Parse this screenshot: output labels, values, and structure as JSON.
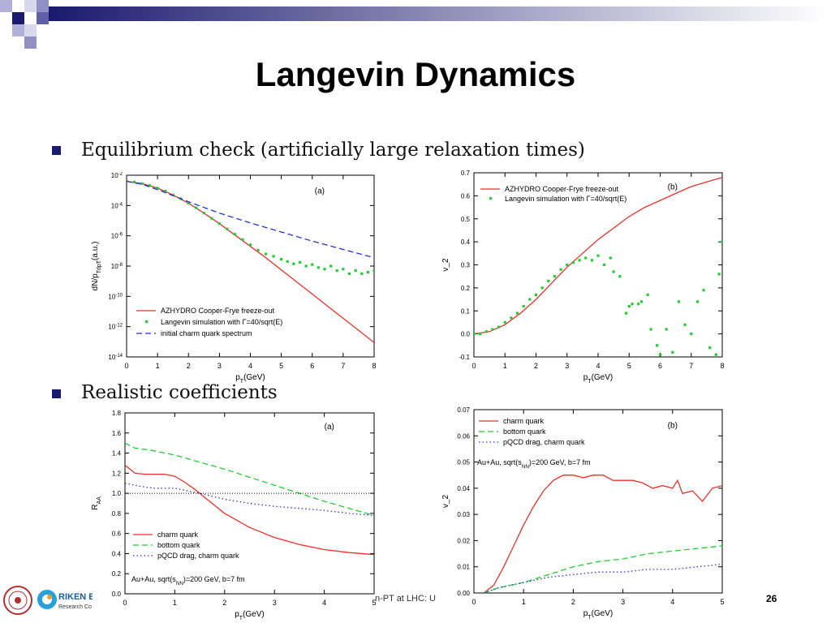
{
  "slide": {
    "title": "Langevin Dynamics",
    "bullet1": "Equilibrium check (artificially large relaxation times)",
    "bullet2": "Realistic coefficients",
    "footer": "n-PT at LHC: U",
    "page": "26",
    "logo_text": "RIKEN B",
    "logo_sub": "Research Co"
  },
  "colors": {
    "accent": "#1a1a6e",
    "red": "#e8312a",
    "blue": "#2633c8",
    "green": "#22cc33",
    "bluedot": "#3333cc"
  },
  "chart_data": [
    {
      "type": "line",
      "panel": "(a)",
      "xlabel": "p_T(GeV)",
      "ylabel": "dN/p_Tdp_T(a.u.)",
      "xlim": [
        0,
        8
      ],
      "ylim_log10": [
        -14,
        -2
      ],
      "log_y": true,
      "xticks": [
        "0",
        "1",
        "2",
        "3",
        "4",
        "5",
        "6",
        "7",
        "8"
      ],
      "yticks": [
        {
          "exp": "-2"
        },
        {
          "exp": "-4"
        },
        {
          "exp": "-6"
        },
        {
          "exp": "-8"
        },
        {
          "exp": "-10"
        },
        {
          "exp": "-12"
        },
        {
          "exp": "-14"
        }
      ],
      "legend": [
        "AZHYDRO Cooper-Frye freeze-out",
        "Langevin simulation with Γ=40/sqrt(E)",
        "initial charm quark spectrum"
      ],
      "series": [
        {
          "name": "AZHYDRO Cooper-Frye freeze-out",
          "style": "solid",
          "color": "#e8312a",
          "x": [
            0,
            0.5,
            1,
            1.5,
            2,
            2.5,
            3,
            3.5,
            4,
            4.5,
            5,
            5.5,
            6,
            6.5,
            7,
            7.5,
            8
          ],
          "y": [
            -2.4,
            -2.55,
            -2.85,
            -3.3,
            -3.85,
            -4.5,
            -5.2,
            -5.95,
            -6.7,
            -7.45,
            -8.25,
            -9.05,
            -9.85,
            -10.65,
            -11.45,
            -12.25,
            -13.05
          ]
        },
        {
          "name": "Langevin simulation with Γ=40/sqrt(E)",
          "style": "dots",
          "color": "#22cc33",
          "x": [
            0,
            0.25,
            0.5,
            0.75,
            1,
            1.25,
            1.5,
            1.75,
            2,
            2.25,
            2.5,
            2.75,
            3,
            3.25,
            3.5,
            3.75,
            4,
            4.25,
            4.5,
            4.75,
            5,
            5.2,
            5.4,
            5.6,
            5.8,
            6,
            6.2,
            6.4,
            6.6,
            6.8,
            7,
            7.2,
            7.4,
            7.6,
            7.8,
            8
          ],
          "y": [
            -2.4,
            -2.45,
            -2.55,
            -2.68,
            -2.85,
            -3.05,
            -3.3,
            -3.55,
            -3.85,
            -4.15,
            -4.5,
            -4.85,
            -5.2,
            -5.55,
            -5.9,
            -6.25,
            -6.6,
            -6.95,
            -7.2,
            -7.35,
            -7.55,
            -7.7,
            -7.85,
            -7.75,
            -8.0,
            -7.9,
            -8.1,
            -8.2,
            -8.0,
            -8.3,
            -8.2,
            -8.5,
            -8.3,
            -8.5,
            -8.4,
            -8.3
          ]
        },
        {
          "name": "initial charm quark spectrum",
          "style": "dashed",
          "color": "#2633c8",
          "x": [
            0,
            0.5,
            1,
            1.5,
            2,
            3,
            4,
            5,
            6,
            7,
            8
          ],
          "y": [
            -2.4,
            -2.6,
            -2.95,
            -3.35,
            -3.75,
            -4.5,
            -5.15,
            -5.75,
            -6.35,
            -6.9,
            -7.45
          ]
        }
      ]
    },
    {
      "type": "line",
      "panel": "(b)",
      "xlabel": "p_T(GeV)",
      "ylabel": "v_2",
      "xlim": [
        0,
        8
      ],
      "ylim": [
        -0.1,
        0.7
      ],
      "xticks": [
        "0",
        "1",
        "2",
        "3",
        "4",
        "5",
        "6",
        "7",
        "8"
      ],
      "yticks": [
        "0.7",
        "0.6",
        "0.5",
        "0.4",
        "0.3",
        "0.2",
        "0.1",
        "0.0",
        "-0.1"
      ],
      "legend": [
        "AZHYDRO Cooper-Frye freeze-out",
        "Langevin simulation with Γ=40/sqrt(E)"
      ],
      "series": [
        {
          "name": "AZHYDRO Cooper-Frye freeze-out",
          "style": "solid",
          "color": "#e8312a",
          "x": [
            0,
            0.5,
            1,
            1.5,
            2,
            2.5,
            3,
            3.5,
            4,
            4.5,
            5,
            5.5,
            6,
            6.5,
            7,
            7.5,
            8
          ],
          "y": [
            0,
            0.01,
            0.04,
            0.09,
            0.15,
            0.22,
            0.29,
            0.35,
            0.41,
            0.46,
            0.51,
            0.55,
            0.58,
            0.61,
            0.64,
            0.66,
            0.68
          ]
        },
        {
          "name": "Langevin simulation with Γ=40/sqrt(E)",
          "style": "dots",
          "color": "#22cc33",
          "x": [
            0,
            0.2,
            0.4,
            0.6,
            0.8,
            1,
            1.2,
            1.4,
            1.6,
            1.8,
            2,
            2.2,
            2.4,
            2.6,
            2.8,
            3,
            3.2,
            3.4,
            3.6,
            3.8,
            4,
            4.2,
            4.4,
            4.5,
            4.7,
            4.9,
            5.0,
            5.1,
            5.3,
            5.4,
            5.6,
            5.7,
            5.9,
            6.0,
            6.2,
            6.4,
            6.6,
            6.8,
            7.0,
            7.2,
            7.4,
            7.6,
            7.8,
            7.9,
            8.0
          ],
          "y": [
            0,
            0.0,
            0.01,
            0.02,
            0.03,
            0.05,
            0.07,
            0.09,
            0.12,
            0.15,
            0.17,
            0.2,
            0.23,
            0.25,
            0.28,
            0.3,
            0.31,
            0.32,
            0.33,
            0.32,
            0.34,
            0.3,
            0.33,
            0.27,
            0.25,
            0.09,
            0.12,
            0.13,
            0.13,
            0.14,
            0.17,
            0.02,
            -0.05,
            -0.09,
            0.02,
            -0.08,
            0.14,
            0.04,
            0.0,
            0.14,
            0.19,
            -0.06,
            -0.09,
            0.26,
            0.4
          ]
        }
      ]
    },
    {
      "type": "line",
      "panel": "(a)",
      "xlabel": "p_T(GeV)",
      "ylabel": "R_AA",
      "xlim": [
        0,
        5
      ],
      "ylim": [
        0,
        1.8
      ],
      "xticks": [
        "0",
        "1",
        "2",
        "3",
        "4",
        "5"
      ],
      "yticks": [
        "1.8",
        "1.6",
        "1.4",
        "1.2",
        "1.0",
        "0.8",
        "0.6",
        "0.4",
        "0.2",
        "0.0"
      ],
      "legend": [
        "charm quark",
        "bottom quark",
        "pQCD drag, charm quark"
      ],
      "annotation": "Au+Au, sqrt(s_NN)=200 GeV, b=7 fm",
      "series": [
        {
          "name": "charm quark",
          "style": "solid",
          "color": "#e8312a",
          "x": [
            0,
            0.2,
            0.4,
            0.6,
            0.8,
            1,
            1.2,
            1.4,
            1.6,
            1.8,
            2,
            2.5,
            3,
            3.5,
            4,
            4.5,
            5
          ],
          "y": [
            1.28,
            1.2,
            1.19,
            1.19,
            1.19,
            1.17,
            1.11,
            1.04,
            0.96,
            0.88,
            0.8,
            0.66,
            0.56,
            0.49,
            0.44,
            0.41,
            0.39
          ]
        },
        {
          "name": "bottom quark",
          "style": "dashed",
          "color": "#22cc33",
          "x": [
            0,
            0.2,
            0.5,
            1,
            1.5,
            2,
            2.5,
            3,
            3.5,
            4,
            4.5,
            5
          ],
          "y": [
            1.5,
            1.45,
            1.43,
            1.38,
            1.31,
            1.24,
            1.16,
            1.08,
            1.0,
            0.92,
            0.85,
            0.78
          ]
        },
        {
          "name": "pQCD drag, charm quark",
          "style": "dotted",
          "color": "#3333cc",
          "x": [
            0,
            0.3,
            0.6,
            1,
            1.5,
            2,
            2.5,
            3,
            3.5,
            4,
            4.5,
            5
          ],
          "y": [
            1.1,
            1.07,
            1.05,
            1.05,
            1.0,
            0.94,
            0.9,
            0.87,
            0.85,
            0.83,
            0.8,
            0.78
          ]
        },
        {
          "name": "",
          "style": "dotted-black",
          "color": "#000000",
          "x": [
            0,
            5
          ],
          "y": [
            1.0,
            1.0
          ]
        }
      ]
    },
    {
      "type": "line",
      "panel": "(b)",
      "xlabel": "p_T(GeV)",
      "ylabel": "v_2",
      "xlim": [
        0,
        5
      ],
      "ylim": [
        0,
        0.07
      ],
      "xticks": [
        "0",
        "1",
        "2",
        "3",
        "4",
        "5"
      ],
      "yticks": [
        "0.07",
        "0.06",
        "0.05",
        "0.04",
        "0.03",
        "0.02",
        "0.01",
        "0.00"
      ],
      "legend": [
        "charm quark",
        "bottom quark",
        "pQCD drag, charm quark"
      ],
      "annotation": "Au+Au, sqrt(s_NN)=200 GeV, b=7 fm",
      "series": [
        {
          "name": "charm quark",
          "style": "solid",
          "color": "#e8312a",
          "x": [
            0.2,
            0.4,
            0.6,
            0.8,
            1,
            1.2,
            1.4,
            1.6,
            1.8,
            2,
            2.2,
            2.4,
            2.6,
            2.8,
            3,
            3.2,
            3.4,
            3.6,
            3.8,
            4,
            4.1,
            4.2,
            4.4,
            4.6,
            4.8,
            5
          ],
          "y": [
            0.0,
            0.003,
            0.01,
            0.018,
            0.026,
            0.033,
            0.039,
            0.043,
            0.045,
            0.045,
            0.044,
            0.045,
            0.045,
            0.043,
            0.043,
            0.043,
            0.042,
            0.04,
            0.041,
            0.04,
            0.043,
            0.038,
            0.039,
            0.035,
            0.04,
            0.041
          ]
        },
        {
          "name": "bottom quark",
          "style": "dashed",
          "color": "#22cc33",
          "x": [
            0.2,
            0.5,
            1,
            1.5,
            2,
            2.5,
            3,
            3.5,
            4,
            4.5,
            5
          ],
          "y": [
            0.0,
            0.002,
            0.004,
            0.007,
            0.01,
            0.012,
            0.013,
            0.015,
            0.016,
            0.017,
            0.018
          ]
        },
        {
          "name": "pQCD drag, charm quark",
          "style": "dotted",
          "color": "#3333cc",
          "x": [
            0.2,
            0.5,
            1,
            1.5,
            2,
            2.5,
            3,
            3.5,
            4,
            4.5,
            5
          ],
          "y": [
            0.0,
            0.002,
            0.004,
            0.006,
            0.007,
            0.008,
            0.008,
            0.009,
            0.009,
            0.01,
            0.011
          ]
        }
      ]
    }
  ]
}
